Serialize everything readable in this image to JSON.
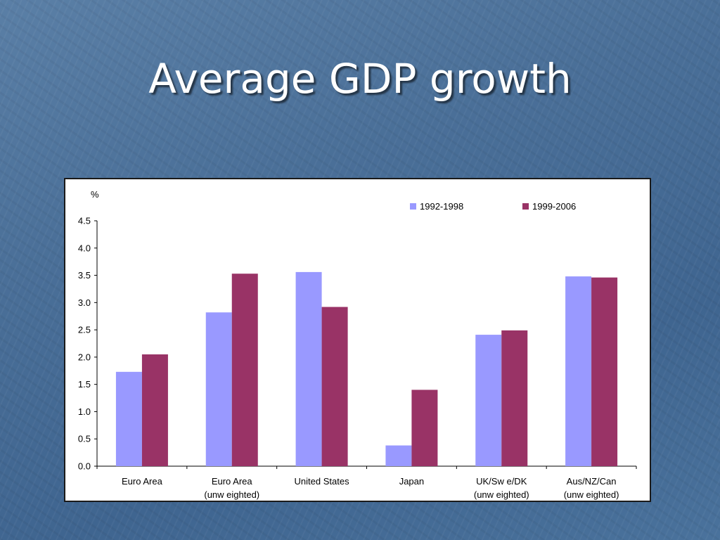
{
  "slide": {
    "title": "Average GDP growth"
  },
  "chart_data": {
    "type": "bar",
    "ylabel": "%",
    "ylim": [
      0,
      4.5
    ],
    "yticks": [
      "0.0",
      "0.5",
      "1.0",
      "1.5",
      "2.0",
      "2.5",
      "3.0",
      "3.5",
      "4.0",
      "4.5"
    ],
    "categories": [
      [
        "Euro Area"
      ],
      [
        "Euro Area",
        "(unw eighted)"
      ],
      [
        "United States"
      ],
      [
        "Japan"
      ],
      [
        "UK/Sw e/DK",
        "(unw eighted)"
      ],
      [
        "Aus/NZ/Can",
        "(unw eighted)"
      ]
    ],
    "series": [
      {
        "name": "1992-1998",
        "color": "#9999ff",
        "values": [
          1.73,
          2.82,
          3.56,
          0.38,
          2.41,
          3.48
        ]
      },
      {
        "name": "1999-2006",
        "color": "#993366",
        "values": [
          2.05,
          3.53,
          2.92,
          1.4,
          2.49,
          3.46
        ]
      }
    ],
    "legend": "top-right",
    "grid": false
  }
}
